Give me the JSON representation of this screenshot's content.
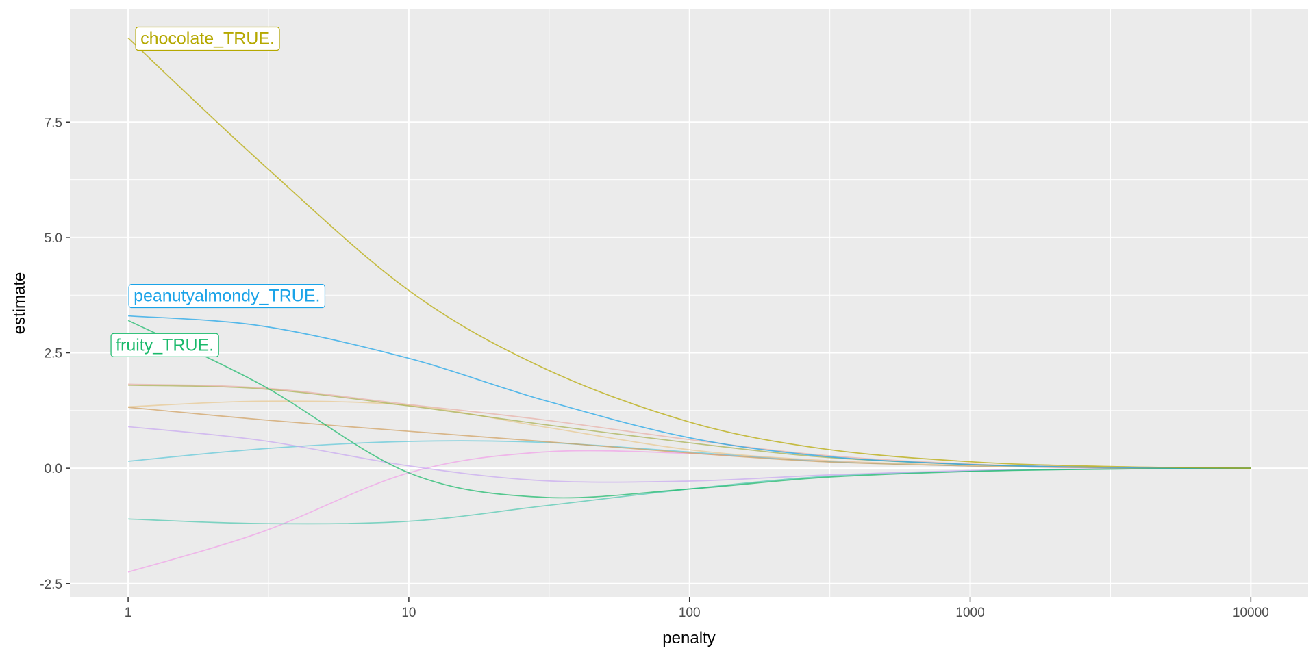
{
  "chart_data": {
    "type": "line",
    "xlabel": "penalty",
    "ylabel": "estimate",
    "x_scale": "log10",
    "xlim": [
      0.62,
      16000
    ],
    "ylim": [
      -2.8,
      9.95
    ],
    "x_ticks": [
      1,
      10,
      100,
      1000,
      10000
    ],
    "x_tick_labels": [
      "1",
      "10",
      "100",
      "1000",
      "10000"
    ],
    "y_ticks": [
      -2.5,
      0.0,
      2.5,
      5.0,
      7.5
    ],
    "y_tick_labels": [
      "-2.5",
      "0.0",
      "2.5",
      "5.0",
      "7.5"
    ],
    "grid": true,
    "legend": "none",
    "x": [
      1,
      3,
      10,
      30,
      100,
      300,
      1000,
      3000,
      10000
    ],
    "series": [
      {
        "label": "chocolate_TRUE.",
        "color": "#b5a800",
        "values": [
          9.32,
          6.6,
          3.85,
          2.18,
          1.0,
          0.42,
          0.14,
          0.04,
          0.0
        ]
      },
      {
        "label": "peanutyalmondy_TRUE.",
        "color": "#1aa3e8",
        "values": [
          3.3,
          3.08,
          2.38,
          1.48,
          0.66,
          0.26,
          0.08,
          0.02,
          0.0
        ]
      },
      {
        "label": "fruity_TRUE.",
        "color": "#19b96a",
        "values": [
          3.2,
          1.8,
          -0.1,
          -0.63,
          -0.45,
          -0.2,
          -0.07,
          -0.02,
          0.0
        ]
      },
      {
        "color": "#e8b0a8",
        "values": [
          1.82,
          1.74,
          1.38,
          1.05,
          0.62,
          0.28,
          0.09,
          0.02,
          0.0
        ]
      },
      {
        "color": "#a8b050",
        "values": [
          1.8,
          1.72,
          1.35,
          0.95,
          0.55,
          0.24,
          0.08,
          0.02,
          0.0
        ]
      },
      {
        "color": "#e8c890",
        "values": [
          1.33,
          1.45,
          1.36,
          0.9,
          0.4,
          0.17,
          0.06,
          0.02,
          0.0
        ]
      },
      {
        "color": "#d0a060",
        "values": [
          1.32,
          1.05,
          0.8,
          0.58,
          0.33,
          0.14,
          0.05,
          0.01,
          0.0
        ]
      },
      {
        "color": "#c8a8f0",
        "values": [
          0.9,
          0.6,
          0.05,
          -0.27,
          -0.28,
          -0.15,
          -0.05,
          -0.01,
          0.0
        ]
      },
      {
        "color": "#60c8d8",
        "values": [
          0.15,
          0.42,
          0.58,
          0.56,
          0.35,
          0.15,
          0.05,
          0.01,
          0.0
        ]
      },
      {
        "color": "#50c8b0",
        "values": [
          -1.1,
          -1.2,
          -1.15,
          -0.82,
          -0.45,
          -0.18,
          -0.06,
          -0.02,
          0.0
        ]
      },
      {
        "color": "#f0a0e8",
        "values": [
          -2.25,
          -1.38,
          -0.1,
          0.35,
          0.32,
          0.16,
          0.05,
          0.01,
          0.0
        ]
      }
    ]
  }
}
